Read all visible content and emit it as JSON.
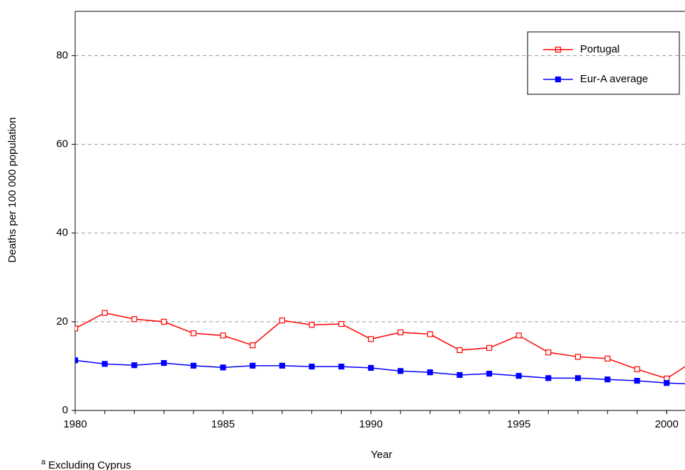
{
  "chart_data": {
    "type": "line",
    "x": [
      1980,
      1981,
      1982,
      1983,
      1984,
      1985,
      1986,
      1987,
      1988,
      1989,
      1990,
      1991,
      1992,
      1993,
      1994,
      1995,
      1996,
      1997,
      1998,
      1999,
      2000,
      2001
    ],
    "series": [
      {
        "name": "Portugal",
        "color": "#ff0000",
        "marker": "hollow-square",
        "values": [
          18.5,
          22,
          20.6,
          20,
          17.4,
          16.9,
          14.7,
          20.3,
          19.3,
          19.5,
          16.1,
          17.6,
          17.2,
          13.6,
          14.1,
          16.9,
          13.1,
          12.1,
          11.7,
          9.3,
          7.2,
          11.5
        ]
      },
      {
        "name": "Eur-A average",
        "color": "#0000ff",
        "marker": "filled-square",
        "values": [
          11.3,
          10.5,
          10.2,
          10.7,
          10.1,
          9.7,
          10.1,
          10.1,
          9.9,
          9.9,
          9.6,
          8.9,
          8.6,
          8.0,
          8.3,
          7.8,
          7.3,
          7.3,
          7.0,
          6.7,
          6.2,
          5.9
        ]
      }
    ],
    "xlabel": "Year",
    "ylabel": "Deaths per 100 000 population",
    "xlim": [
      1980,
      2000.62
    ],
    "xticks": [
      1980,
      1985,
      1990,
      1995,
      2000
    ],
    "ylim": [
      0,
      90
    ],
    "yticks": [
      0,
      20,
      40,
      60,
      80
    ],
    "grid": true,
    "legend": "upper right",
    "footnote": {
      "marker": "a",
      "text": "Excluding Cyprus"
    }
  }
}
